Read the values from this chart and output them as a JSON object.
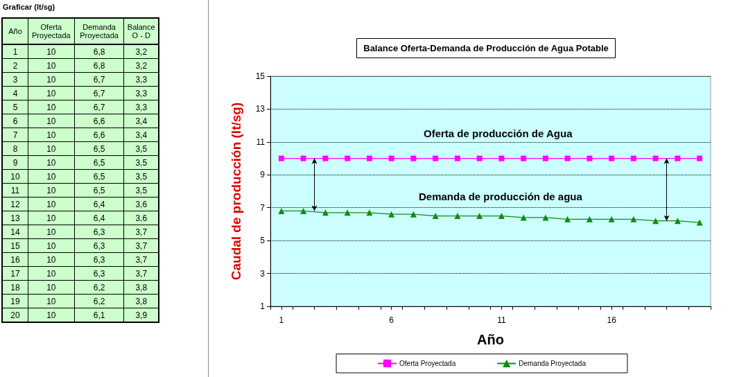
{
  "chart_data": {
    "type": "line",
    "title": "Balance Oferta-Demanda de Producción de Agua Potable",
    "xlabel": "Año",
    "ylabel": "Caudal de producción (lt/sg)",
    "x": [
      1,
      2,
      3,
      4,
      5,
      6,
      7,
      8,
      9,
      10,
      11,
      12,
      13,
      14,
      15,
      16,
      17,
      18,
      19,
      20
    ],
    "xlim": [
      0.5,
      20.5
    ],
    "xticks": [
      1,
      6,
      11,
      16,
      {
        "value": 0.5,
        "label": null
      },
      {
        "value": 1.5,
        "label": null
      },
      {
        "value": 2.5,
        "label": null
      },
      {
        "value": 3.5,
        "label": null
      },
      {
        "value": 4.5,
        "label": null
      },
      {
        "value": 5.5,
        "label": null
      },
      {
        "value": 6.5,
        "label": null
      },
      {
        "value": 7.5,
        "label": null
      },
      {
        "value": 8.5,
        "label": null
      },
      {
        "value": 9.5,
        "label": null
      },
      {
        "value": 10.5,
        "label": null
      },
      {
        "value": 11.5,
        "label": null
      },
      {
        "value": 12.5,
        "label": null
      },
      {
        "value": 13.5,
        "label": null
      },
      {
        "value": 14.5,
        "label": null
      },
      {
        "value": 15.5,
        "label": null
      },
      {
        "value": 16.5,
        "label": null
      },
      {
        "value": 17.5,
        "label": null
      },
      {
        "value": 18.5,
        "label": null
      },
      {
        "value": 19.5,
        "label": null
      },
      {
        "value": 20.5,
        "label": null
      }
    ],
    "ylim": [
      1,
      15
    ],
    "yticks": [
      1,
      3,
      5,
      7,
      9,
      11,
      13,
      15
    ],
    "grid": "y",
    "legend": "bottom",
    "series": [
      {
        "name": "Oferta Proyectada",
        "color": "#ff00ff",
        "marker": "square",
        "values": [
          10,
          10,
          10,
          10,
          10,
          10,
          10,
          10,
          10,
          10,
          10,
          10,
          10,
          10,
          10,
          10,
          10,
          10,
          10,
          10
        ]
      },
      {
        "name": "Demanda Proyectada",
        "color": "#138a13",
        "marker": "triangle",
        "values": [
          6.8,
          6.8,
          6.7,
          6.7,
          6.7,
          6.6,
          6.6,
          6.5,
          6.5,
          6.5,
          6.5,
          6.4,
          6.4,
          6.3,
          6.3,
          6.3,
          6.3,
          6.2,
          6.2,
          6.1
        ]
      }
    ],
    "annotations": [
      "Oferta de producción de Agua",
      "Demanda de producción de agua",
      "Graficar (lt/sg)",
      "Año",
      "Oferta Proyectada",
      "Demanda Proyectada",
      "Balance O - D",
      "1",
      "10",
      "6,8",
      "3,2",
      "2",
      "10",
      "6,8",
      "3,2",
      "3",
      "10",
      "6,7",
      "3,3",
      "4",
      "10",
      "6,7",
      "3,3",
      "5",
      "10",
      "6,7",
      "3,3",
      "6",
      "10",
      "6,6",
      "3,4",
      "7",
      "10",
      "6,6",
      "3,4",
      "8",
      "10",
      "6,5",
      "3,5",
      "9",
      "10",
      "6,5",
      "3,5",
      "10",
      "10",
      "6,5",
      "3,5",
      "11",
      "10",
      "6,5",
      "3,5",
      "12",
      "10",
      "6,4",
      "3,6",
      "13",
      "10",
      "6,4",
      "3,6",
      "14",
      "10",
      "6,3",
      "3,7",
      "15",
      "10",
      "6,3",
      "3,7",
      "16",
      "10",
      "6,3",
      "3,7",
      "17",
      "10",
      "6,3",
      "3,7",
      "18",
      "10",
      "6,2",
      "3,8",
      "19",
      "10",
      "6,2",
      "3,8",
      "20",
      "10",
      "6,1",
      "3,9"
    ]
  }
}
